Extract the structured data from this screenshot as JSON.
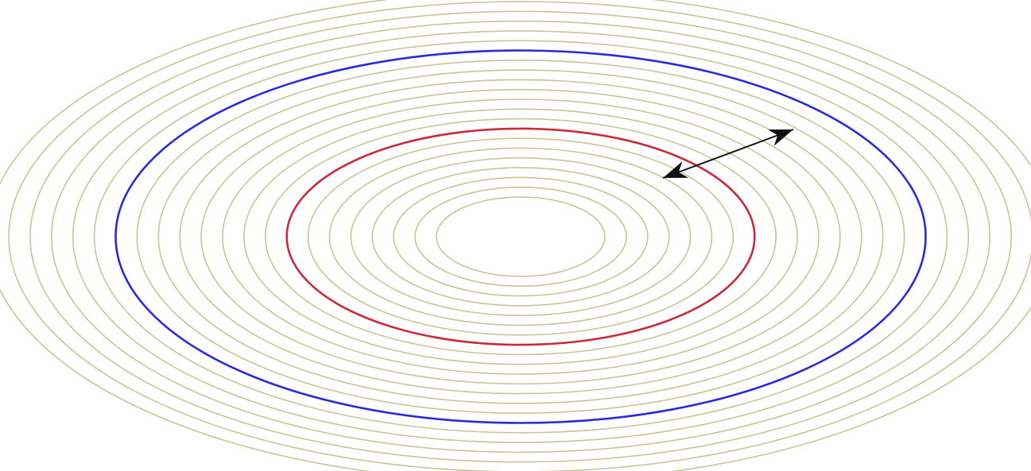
{
  "diagram": {
    "contour_count": 22,
    "highlighted": [
      {
        "name": "inner-highlighted-contour",
        "level_index": 7,
        "color": "#cc2a3a"
      },
      {
        "name": "outer-highlighted-contour",
        "level_index": 15,
        "color": "#2a2adc"
      }
    ],
    "colors": {
      "contour": "#c8c49a",
      "arrow": "#111111",
      "background": "#ffffff"
    },
    "arrow": {
      "connects": [
        "inner-highlighted-contour",
        "outer-highlighted-contour"
      ],
      "heads": "both"
    }
  }
}
